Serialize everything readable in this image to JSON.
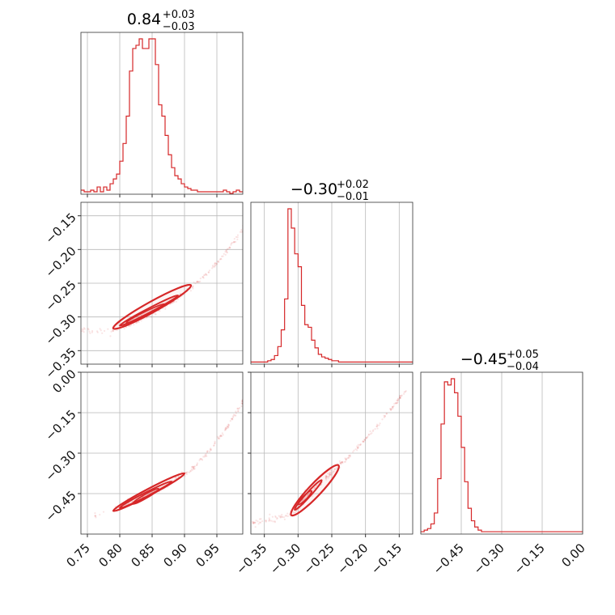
{
  "chart_data": {
    "type": "corner",
    "accent_color": "#d62728",
    "grid": true,
    "parameters": [
      {
        "median": 0.84,
        "title_value": "0.84",
        "err_plus": "+0.03",
        "err_minus": "−0.03",
        "range": [
          0.74,
          0.99
        ]
      },
      {
        "median": -0.3,
        "title_value": "−0.30",
        "err_plus": "+0.02",
        "err_minus": "−0.01",
        "range": [
          -0.37,
          -0.13
        ]
      },
      {
        "median": -0.45,
        "title_value": "−0.45",
        "err_plus": "+0.05",
        "err_minus": "−0.04",
        "range": [
          -0.6,
          0.0
        ]
      }
    ],
    "x_ticks": [
      {
        "values": [
          0.75,
          0.8,
          0.85,
          0.9,
          0.95
        ],
        "labels": [
          "0.75",
          "0.80",
          "0.85",
          "0.90",
          "0.95"
        ]
      },
      {
        "values": [
          -0.35,
          -0.3,
          -0.25,
          -0.2,
          -0.15
        ],
        "labels": [
          "−0.35",
          "−0.30",
          "−0.25",
          "−0.20",
          "−0.15"
        ]
      },
      {
        "values": [
          -0.45,
          -0.3,
          -0.15,
          0.0
        ],
        "labels": [
          "−0.45",
          "−0.30",
          "−0.15",
          "0.00"
        ]
      }
    ],
    "y_ticks": [
      null,
      {
        "values": [
          -0.15,
          -0.2,
          -0.25,
          -0.3,
          -0.35
        ],
        "labels": [
          "−0.15",
          "−0.20",
          "−0.25",
          "−0.30",
          "−0.35"
        ]
      },
      {
        "values": [
          0.0,
          -0.15,
          -0.3,
          -0.45
        ],
        "labels": [
          "0.00",
          "−0.15",
          "−0.30",
          "−0.45"
        ]
      }
    ],
    "histograms": [
      {
        "param": 0,
        "edges_start": 0.74,
        "bin_width": 0.005,
        "counts": [
          2,
          1,
          1,
          2,
          1,
          4,
          1,
          4,
          2,
          6,
          9,
          12,
          20,
          31,
          48,
          76,
          90,
          92,
          96,
          90,
          90,
          96,
          96,
          80,
          55,
          48,
          36,
          24,
          16,
          11,
          9,
          6,
          4,
          3,
          2,
          2,
          1,
          1,
          1,
          1,
          1,
          1,
          1,
          1,
          2,
          1,
          0,
          1,
          2,
          1
        ]
      },
      {
        "param": 1,
        "edges_start": -0.37,
        "bin_width": 0.005,
        "counts": [
          1,
          1,
          1,
          1,
          1,
          2,
          3,
          6,
          13,
          26,
          50,
          120,
          105,
          85,
          75,
          45,
          30,
          28,
          18,
          12,
          7,
          5,
          4,
          3,
          2,
          2,
          1,
          1,
          1,
          1,
          1,
          1,
          1,
          1,
          1,
          1,
          1,
          1,
          1,
          1,
          1,
          1,
          1,
          1,
          1,
          1,
          1,
          1
        ]
      },
      {
        "param": 2,
        "edges_start": -0.6,
        "bin_width": 0.0125,
        "counts": [
          1,
          2,
          3,
          6,
          13,
          35,
          70,
          97,
          95,
          99,
          90,
          75,
          55,
          33,
          16,
          8,
          4,
          2,
          1,
          1,
          1,
          1,
          1,
          1,
          1,
          1,
          1,
          1,
          1,
          1,
          1,
          1,
          1,
          1,
          1,
          1,
          1,
          1,
          1,
          1,
          1,
          1,
          1,
          1,
          1,
          1,
          1,
          1
        ]
      }
    ],
    "pairs": [
      {
        "x_param": 0,
        "y_param": 1,
        "curve": [
          [
            0.73,
            -0.318
          ],
          [
            0.76,
            -0.321
          ],
          [
            0.79,
            -0.318
          ],
          [
            0.81,
            -0.313
          ],
          [
            0.83,
            -0.305
          ],
          [
            0.85,
            -0.296
          ],
          [
            0.87,
            -0.285
          ],
          [
            0.89,
            -0.272
          ],
          [
            0.91,
            -0.257
          ],
          [
            0.93,
            -0.24
          ],
          [
            0.95,
            -0.22
          ],
          [
            0.97,
            -0.197
          ],
          [
            0.99,
            -0.171
          ],
          [
            1.0,
            -0.153
          ]
        ],
        "contours": [
          {
            "x0": 0.79,
            "y0": -0.317,
            "x1": 0.91,
            "y1": -0.253,
            "width_rel": 0.06
          },
          {
            "x0": 0.8,
            "y0": -0.313,
            "x1": 0.89,
            "y1": -0.268,
            "width_rel": 0.032
          },
          {
            "x0": 0.81,
            "y0": -0.309,
            "x1": 0.87,
            "y1": -0.281,
            "width_rel": 0.014
          }
        ]
      },
      {
        "x_param": 0,
        "y_param": 2,
        "curve": [
          [
            0.76,
            -0.535
          ],
          [
            0.79,
            -0.508
          ],
          [
            0.82,
            -0.478
          ],
          [
            0.85,
            -0.446
          ],
          [
            0.88,
            -0.408
          ],
          [
            0.91,
            -0.36
          ],
          [
            0.94,
            -0.288
          ],
          [
            0.97,
            -0.19
          ],
          [
            0.99,
            -0.11
          ],
          [
            1.0,
            -0.06
          ]
        ],
        "contours": [
          {
            "x0": 0.79,
            "y0": -0.514,
            "x1": 0.9,
            "y1": -0.375,
            "width_rel": 0.04
          },
          {
            "x0": 0.8,
            "y0": -0.503,
            "x1": 0.88,
            "y1": -0.405,
            "width_rel": 0.022
          },
          {
            "x0": 0.82,
            "y0": -0.488,
            "x1": 0.86,
            "y1": -0.432,
            "width_rel": 0.01
          }
        ]
      },
      {
        "x_param": 1,
        "y_param": 2,
        "curve": [
          [
            -0.37,
            -0.56
          ],
          [
            -0.34,
            -0.545
          ],
          [
            -0.31,
            -0.525
          ],
          [
            -0.29,
            -0.47
          ],
          [
            -0.27,
            -0.42
          ],
          [
            -0.25,
            -0.37
          ],
          [
            -0.22,
            -0.3
          ],
          [
            -0.19,
            -0.22
          ],
          [
            -0.16,
            -0.13
          ],
          [
            -0.14,
            -0.07
          ]
        ],
        "contours": [
          {
            "x0": -0.31,
            "y0": -0.53,
            "x1": -0.24,
            "y1": -0.345,
            "width_rel": 0.09
          },
          {
            "x0": -0.305,
            "y0": -0.51,
            "x1": -0.265,
            "y1": -0.4,
            "width_rel": 0.055
          },
          {
            "x0": -0.3,
            "y0": -0.49,
            "x1": -0.28,
            "y1": -0.44,
            "width_rel": 0.025
          }
        ]
      }
    ]
  }
}
